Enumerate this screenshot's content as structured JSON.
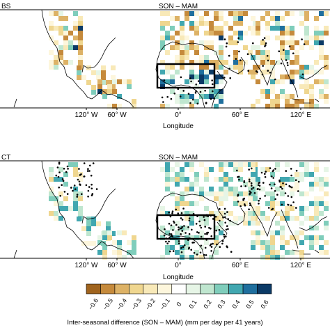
{
  "chart_data": [
    {
      "type": "heatmap",
      "panel_label_fragment": "BS",
      "title": "SON – MAM",
      "xlabel": "Longitude",
      "xticks": [
        "120° W",
        "60° W",
        "0°",
        "60° E",
        "120° E"
      ],
      "box_region": "West Africa box",
      "stippling": true
    },
    {
      "type": "heatmap",
      "panel_label_fragment": "CT",
      "title": "SON – MAM",
      "xlabel": "Longitude",
      "xticks": [
        "120° W",
        "60° W",
        "0°",
        "60° E",
        "120° E"
      ],
      "box_region": "West Africa box",
      "stippling": true
    }
  ],
  "colorbar": {
    "ticks": [
      "−0.6",
      "−0.5",
      "−0.4",
      "−0.3",
      "−0.2",
      "−0.1",
      "0",
      "0.1",
      "0.2",
      "0.3",
      "0.4",
      "0.5",
      "0.6"
    ],
    "colors": [
      "#a0641e",
      "#c58a3c",
      "#ddb266",
      "#efd68f",
      "#f8e9b8",
      "#fdf6dc",
      "#ffffff",
      "#e6f5e6",
      "#bfe6cf",
      "#7fcdbb",
      "#41a7b0",
      "#1f6f9e",
      "#0b3a66"
    ],
    "title": "Inter-seasonal difference (SON – MAM) (mm per day per 41 years)"
  }
}
